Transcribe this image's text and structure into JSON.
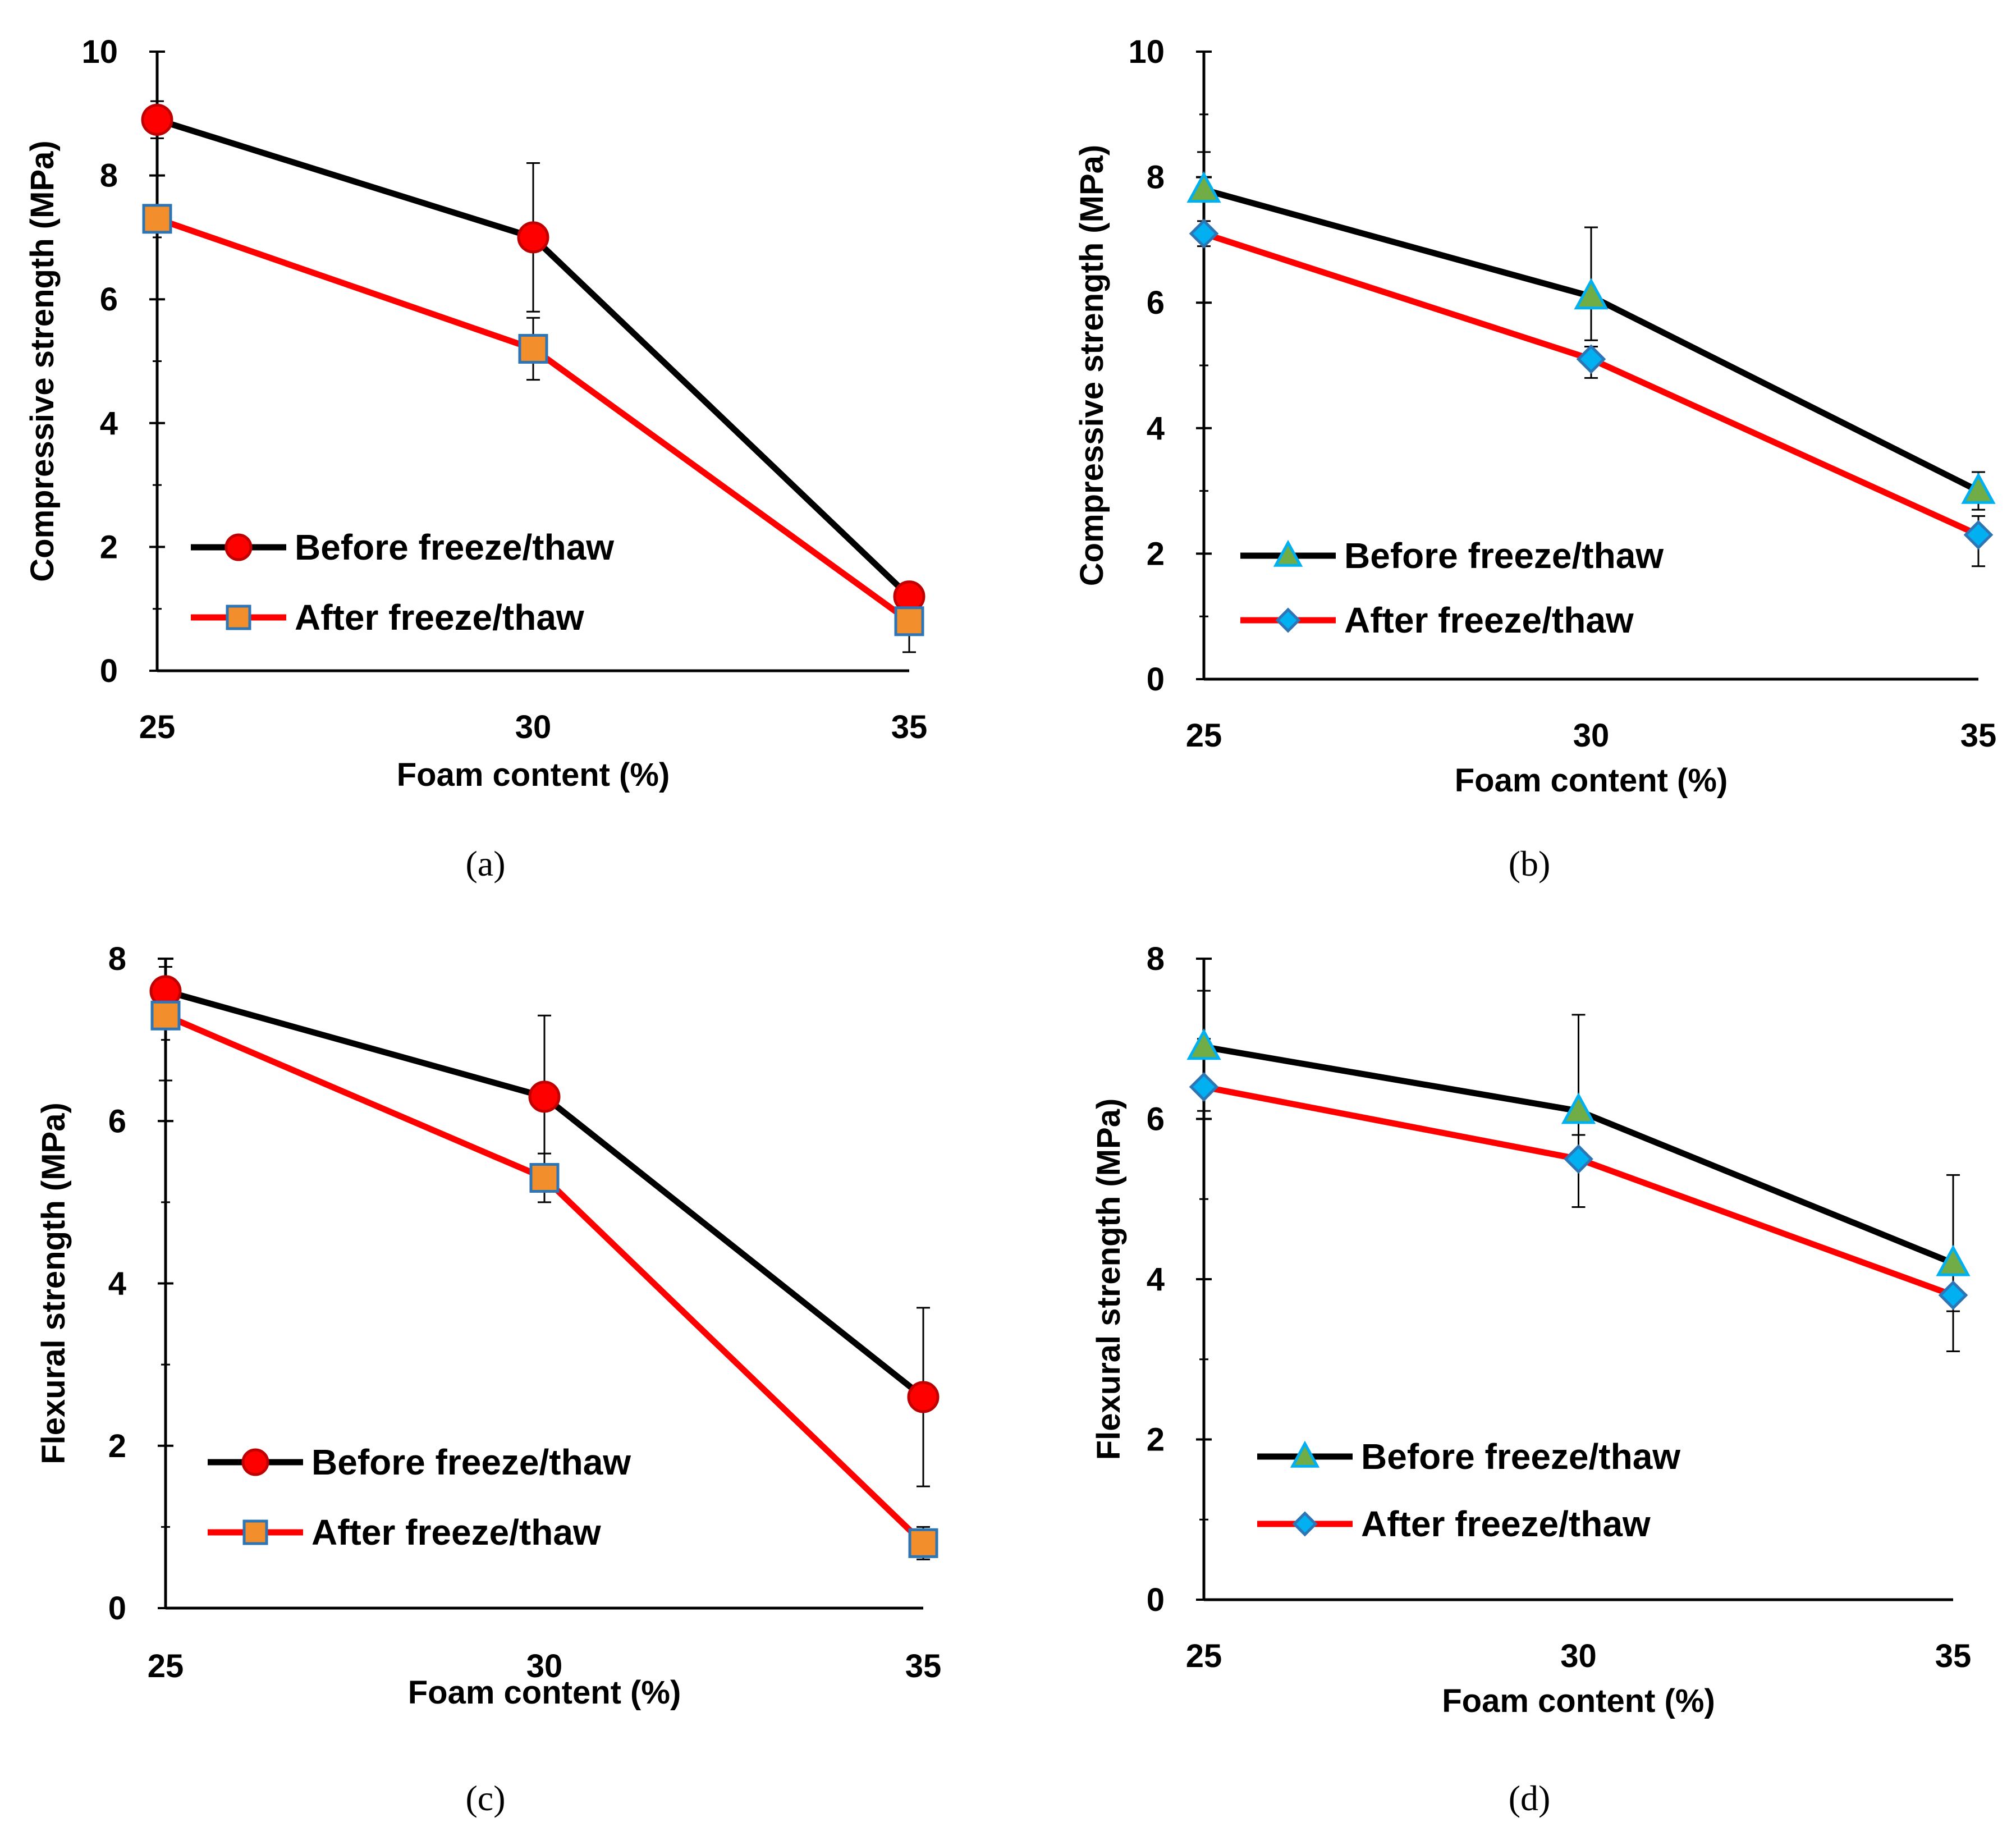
{
  "chart_data": [
    {
      "panel": "a",
      "type": "line",
      "caption": "(a)",
      "xlabel": "Foam content (%)",
      "ylabel": "Compressive strength (MPa)",
      "x": [
        25,
        30,
        35
      ],
      "x_tick_labels": [
        "25",
        "30",
        "35"
      ],
      "ylim": [
        0,
        10
      ],
      "y_tick_labels": [
        "0",
        "2",
        "4",
        "6",
        "8",
        "10"
      ],
      "legend_placement": "bottom-left",
      "grid": false,
      "series": [
        {
          "name": "Before freeze/thaw",
          "values": [
            8.9,
            7.0,
            1.2
          ],
          "error_high": [
            0.3,
            1.2,
            0.1
          ],
          "error_low": [
            0.3,
            1.2,
            0.1
          ],
          "marker": "circle",
          "line_color": "#000000",
          "marker_fill": "#ff0000",
          "marker_stroke": "#c00000"
        },
        {
          "name": "After freeze/thaw",
          "values": [
            7.3,
            5.2,
            0.8
          ],
          "error_high": [
            0.1,
            0.5,
            0.2
          ],
          "error_low": [
            0.1,
            0.5,
            0.5
          ],
          "marker": "square",
          "line_color": "#ff0000",
          "marker_fill": "#f28e2b",
          "marker_stroke": "#2e75b6"
        }
      ]
    },
    {
      "panel": "b",
      "type": "line",
      "caption": "(b)",
      "xlabel": "Foam content (%)",
      "ylabel": "Compressive strength (MPa)",
      "x": [
        25,
        30,
        35
      ],
      "x_tick_labels": [
        "25",
        "30",
        "35"
      ],
      "ylim": [
        0,
        10
      ],
      "y_tick_labels": [
        "0",
        "2",
        "4",
        "6",
        "8",
        "10"
      ],
      "legend_placement": "bottom-left",
      "grid": false,
      "series": [
        {
          "name": "Before freeze/thaw",
          "values": [
            7.8,
            6.1,
            3.0
          ],
          "error_high": [
            0.6,
            1.1,
            0.3
          ],
          "error_low": [
            0.6,
            0.7,
            0.3
          ],
          "marker": "triangle",
          "line_color": "#000000",
          "marker_fill": "#70ad47",
          "marker_stroke": "#00b0f0"
        },
        {
          "name": "After freeze/thaw",
          "values": [
            7.1,
            5.1,
            2.3
          ],
          "error_high": [
            0.2,
            0.2,
            0.3
          ],
          "error_low": [
            0.2,
            0.3,
            0.5
          ],
          "marker": "diamond",
          "line_color": "#ff0000",
          "marker_fill": "#00b0f0",
          "marker_stroke": "#2e75b6"
        }
      ]
    },
    {
      "panel": "c",
      "type": "line",
      "caption": "(c)",
      "xlabel": "Foam content (%)",
      "ylabel": "Flexural strength (MPa)",
      "x": [
        25,
        30,
        35
      ],
      "x_tick_labels": [
        "25",
        "30",
        "35"
      ],
      "ylim": [
        0,
        8
      ],
      "y_tick_labels": [
        "0",
        "2",
        "4",
        "6",
        "8"
      ],
      "legend_placement": "bottom-left",
      "grid": false,
      "series": [
        {
          "name": "Before freeze/thaw",
          "values": [
            7.6,
            6.3,
            2.6
          ],
          "error_high": [
            0.3,
            1.0,
            1.1
          ],
          "error_low": [
            0.3,
            1.0,
            1.1
          ],
          "marker": "circle",
          "line_color": "#000000",
          "marker_fill": "#ff0000",
          "marker_stroke": "#c00000"
        },
        {
          "name": "After freeze/thaw",
          "values": [
            7.3,
            5.3,
            0.8
          ],
          "error_high": [
            0.2,
            0.3,
            0.2
          ],
          "error_low": [
            0.8,
            0.3,
            0.2
          ],
          "marker": "square",
          "line_color": "#ff0000",
          "marker_fill": "#f28e2b",
          "marker_stroke": "#2e75b6"
        }
      ]
    },
    {
      "panel": "d",
      "type": "line",
      "caption": "(d)",
      "xlabel": "Foam content (%)",
      "ylabel": "Flexural strength (MPa)",
      "x": [
        25,
        30,
        35
      ],
      "x_tick_labels": [
        "25",
        "30",
        "35"
      ],
      "ylim": [
        0,
        8
      ],
      "y_tick_labels": [
        "0",
        "2",
        "4",
        "6",
        "8"
      ],
      "legend_placement": "bottom-left",
      "grid": false,
      "series": [
        {
          "name": "Before freeze/thaw",
          "values": [
            6.9,
            6.1,
            4.2
          ],
          "error_high": [
            0.7,
            1.2,
            1.1
          ],
          "error_low": [
            0.5,
            0.3,
            0.6
          ],
          "marker": "triangle",
          "line_color": "#000000",
          "marker_fill": "#70ad47",
          "marker_stroke": "#00b0f0"
        },
        {
          "name": "After freeze/thaw",
          "values": [
            6.4,
            5.5,
            3.8
          ],
          "error_high": [
            0.6,
            0.3,
            0.3
          ],
          "error_low": [
            0.3,
            0.6,
            0.7
          ],
          "marker": "diamond",
          "line_color": "#ff0000",
          "marker_fill": "#00b0f0",
          "marker_stroke": "#2e75b6"
        }
      ]
    }
  ]
}
